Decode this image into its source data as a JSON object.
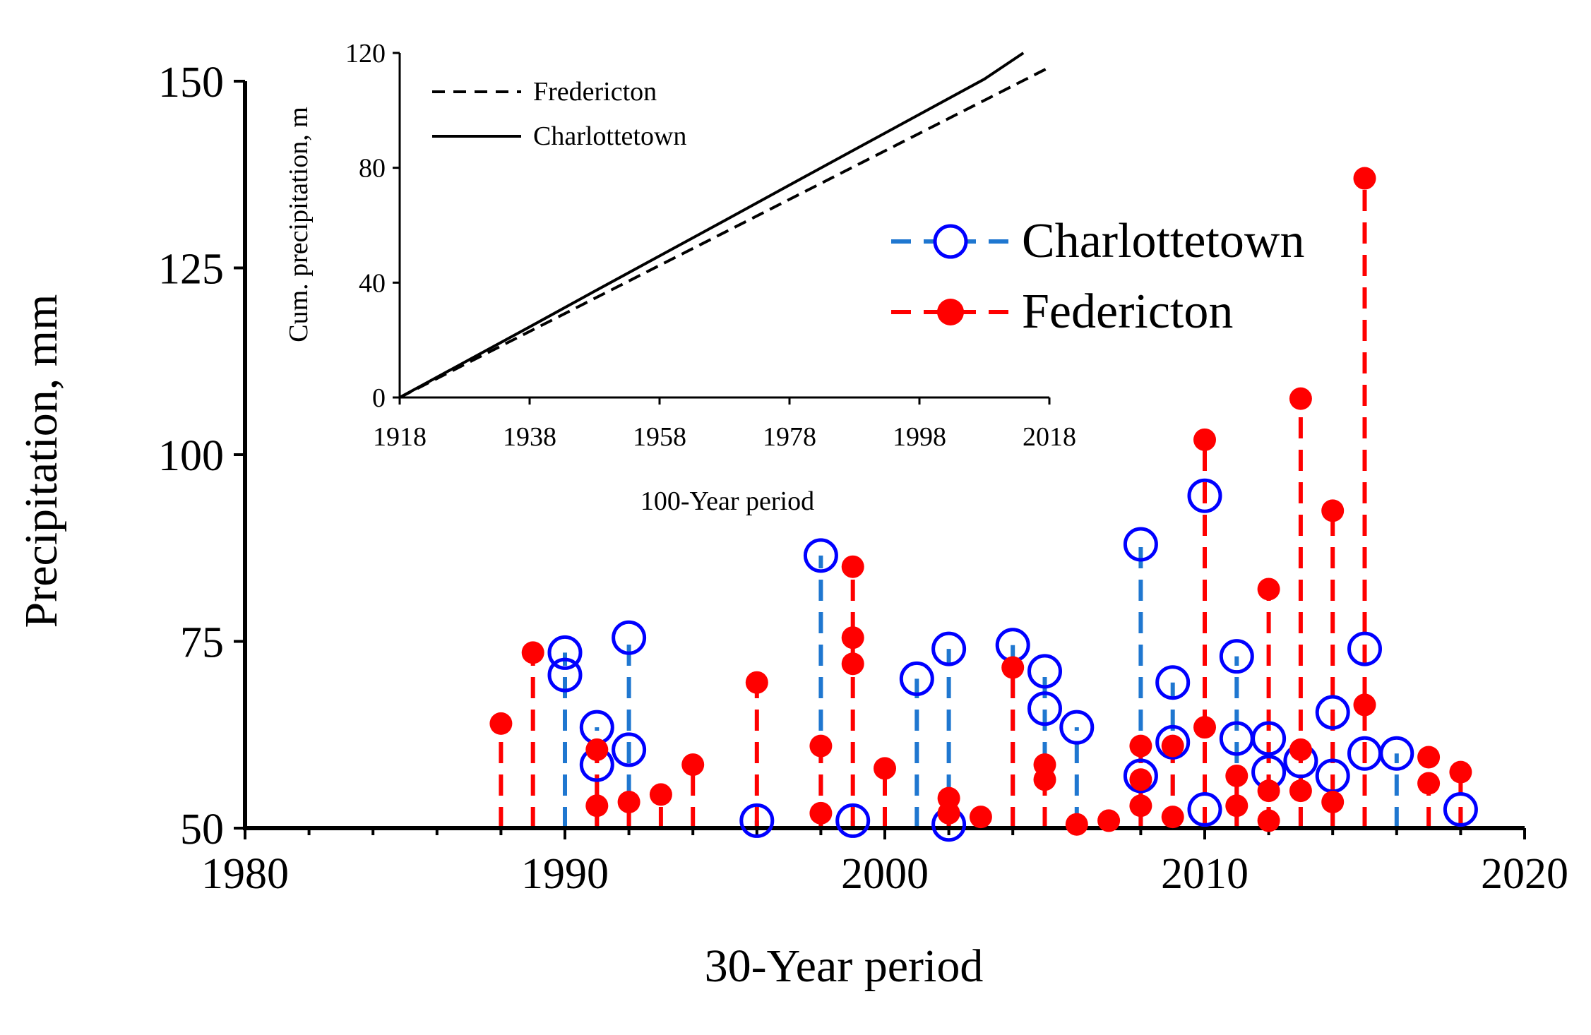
{
  "chart_data": [
    {
      "id": "main",
      "type": "scatter",
      "title": "",
      "xlabel": "30-Year period",
      "ylabel": "Precipitation, mm",
      "xlim": [
        1980,
        2020
      ],
      "ylim": [
        50,
        150
      ],
      "xticks": [
        1980,
        1990,
        2000,
        2010,
        2020
      ],
      "yticks": [
        50,
        75,
        100,
        125,
        150
      ],
      "legend_position": "top-right",
      "series": [
        {
          "name": "Charlottetown",
          "color": "#0000ff",
          "stem_color": "#1f77d0",
          "marker": "open-circle",
          "stem": "dashed",
          "points": [
            {
              "x": 1990,
              "y": 70.5
            },
            {
              "x": 1990,
              "y": 73.5
            },
            {
              "x": 1991,
              "y": 58.5
            },
            {
              "x": 1991,
              "y": 63.5
            },
            {
              "x": 1992,
              "y": 60.5
            },
            {
              "x": 1992,
              "y": 75.5
            },
            {
              "x": 1996,
              "y": 51
            },
            {
              "x": 1998,
              "y": 86.5
            },
            {
              "x": 1999,
              "y": 51
            },
            {
              "x": 2001,
              "y": 70
            },
            {
              "x": 2002,
              "y": 50.5
            },
            {
              "x": 2002,
              "y": 74
            },
            {
              "x": 2004,
              "y": 74.5
            },
            {
              "x": 2005,
              "y": 66
            },
            {
              "x": 2005,
              "y": 71
            },
            {
              "x": 2006,
              "y": 63.5
            },
            {
              "x": 2008,
              "y": 57
            },
            {
              "x": 2008,
              "y": 88
            },
            {
              "x": 2009,
              "y": 61.5
            },
            {
              "x": 2009,
              "y": 69.5
            },
            {
              "x": 2010,
              "y": 52.5
            },
            {
              "x": 2010,
              "y": 94.5
            },
            {
              "x": 2011,
              "y": 62
            },
            {
              "x": 2011,
              "y": 73
            },
            {
              "x": 2012,
              "y": 57.5
            },
            {
              "x": 2012,
              "y": 62
            },
            {
              "x": 2013,
              "y": 59
            },
            {
              "x": 2014,
              "y": 57
            },
            {
              "x": 2014,
              "y": 65.5
            },
            {
              "x": 2015,
              "y": 60
            },
            {
              "x": 2015,
              "y": 74
            },
            {
              "x": 2016,
              "y": 60
            },
            {
              "x": 2018,
              "y": 52.5
            }
          ]
        },
        {
          "name": "Federicton",
          "color": "#ff0000",
          "stem_color": "#ff0000",
          "marker": "filled-circle",
          "stem": "dashed",
          "points": [
            {
              "x": 1988,
              "y": 64
            },
            {
              "x": 1989,
              "y": 73.5
            },
            {
              "x": 1991,
              "y": 53
            },
            {
              "x": 1991,
              "y": 60.5
            },
            {
              "x": 1992,
              "y": 53.5
            },
            {
              "x": 1993,
              "y": 54.5
            },
            {
              "x": 1994,
              "y": 58.5
            },
            {
              "x": 1996,
              "y": 69.5
            },
            {
              "x": 1998,
              "y": 52
            },
            {
              "x": 1998,
              "y": 61
            },
            {
              "x": 1999,
              "y": 72
            },
            {
              "x": 1999,
              "y": 75.5
            },
            {
              "x": 1999,
              "y": 85
            },
            {
              "x": 2000,
              "y": 58
            },
            {
              "x": 2002,
              "y": 52
            },
            {
              "x": 2002,
              "y": 54
            },
            {
              "x": 2003,
              "y": 51.5
            },
            {
              "x": 2004,
              "y": 71.5
            },
            {
              "x": 2005,
              "y": 56.5
            },
            {
              "x": 2005,
              "y": 58.5
            },
            {
              "x": 2006,
              "y": 50.5
            },
            {
              "x": 2007,
              "y": 51
            },
            {
              "x": 2008,
              "y": 53
            },
            {
              "x": 2008,
              "y": 56.5
            },
            {
              "x": 2008,
              "y": 61
            },
            {
              "x": 2009,
              "y": 51.5
            },
            {
              "x": 2009,
              "y": 61
            },
            {
              "x": 2010,
              "y": 63.5
            },
            {
              "x": 2010,
              "y": 102
            },
            {
              "x": 2011,
              "y": 53
            },
            {
              "x": 2011,
              "y": 57
            },
            {
              "x": 2012,
              "y": 51
            },
            {
              "x": 2012,
              "y": 55
            },
            {
              "x": 2012,
              "y": 82
            },
            {
              "x": 2013,
              "y": 55
            },
            {
              "x": 2013,
              "y": 60.5
            },
            {
              "x": 2013,
              "y": 107.5
            },
            {
              "x": 2014,
              "y": 53.5
            },
            {
              "x": 2014,
              "y": 92.5
            },
            {
              "x": 2015,
              "y": 66.5
            },
            {
              "x": 2015,
              "y": 137
            },
            {
              "x": 2017,
              "y": 56
            },
            {
              "x": 2017,
              "y": 59.5
            },
            {
              "x": 2018,
              "y": 57.5
            }
          ]
        }
      ]
    },
    {
      "id": "inset",
      "type": "line",
      "title": "",
      "xlabel": "100-Year period",
      "ylabel": "Cum. precipitation, m",
      "xlim": [
        1918,
        2018
      ],
      "ylim": [
        0,
        120
      ],
      "xticks": [
        1918,
        1938,
        1958,
        1978,
        1998,
        2018
      ],
      "yticks": [
        0,
        40,
        80,
        120
      ],
      "legend_position": "top-left",
      "series": [
        {
          "name": "Fredericton",
          "style": "dashed",
          "x": [
            1918,
            1928,
            1938,
            1948,
            1958,
            1968,
            1978,
            1988,
            1998,
            2008,
            2018
          ],
          "values": [
            0,
            11.5,
            23,
            34.5,
            46,
            57.5,
            69,
            80.5,
            92,
            103.5,
            115
          ]
        },
        {
          "name": "Charlottetown",
          "style": "solid",
          "x": [
            1918,
            1928,
            1938,
            1948,
            1958,
            1968,
            1978,
            1988,
            1998,
            2008,
            2014
          ],
          "values": [
            0,
            12.3,
            24.6,
            37,
            49.3,
            61.6,
            74,
            86.3,
            98.6,
            110.9,
            120
          ]
        }
      ]
    }
  ]
}
